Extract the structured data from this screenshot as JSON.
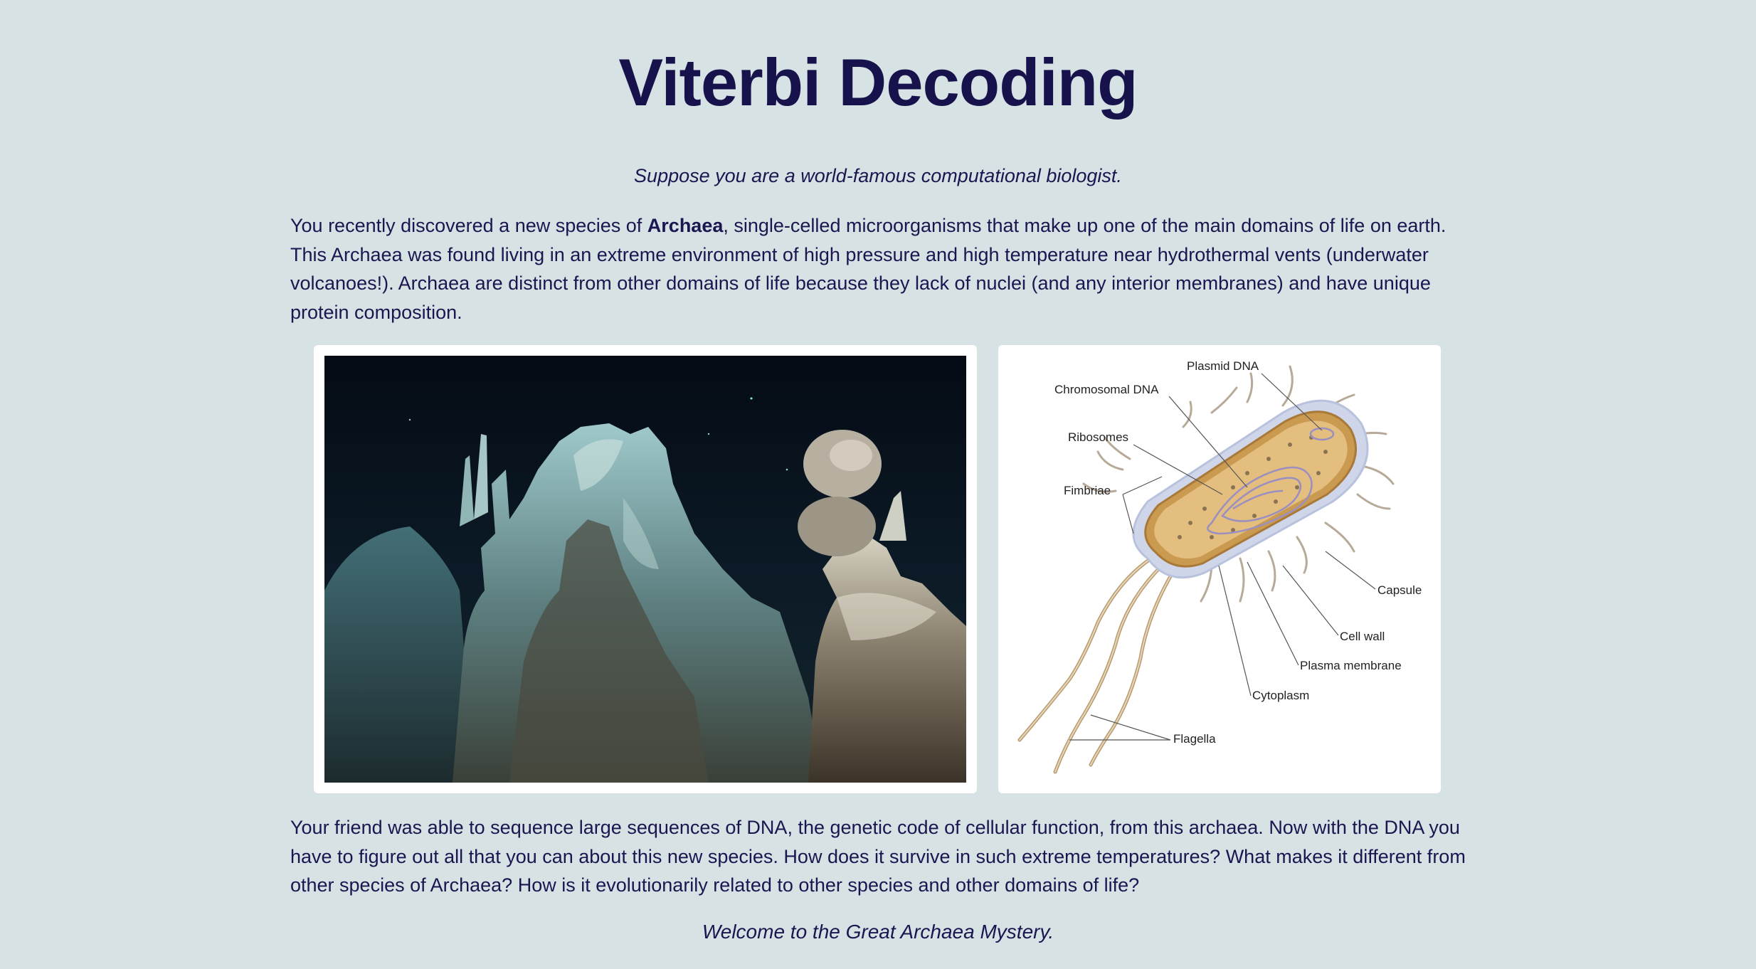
{
  "title": "Viterbi Decoding",
  "lead": "Suppose you are a world-famous computational biologist.",
  "intro": {
    "before": "You recently discovered a new species of ",
    "bold": "Archaea",
    "after": ", single-celled microorganisms that make up one of the main domains of life on earth. This Archaea was found living in an extreme environment of high pressure and high temperature near hydrothermal vents (underwater volcanoes!). Archaea are distinct from other domains of life because they lack of nuclei (and any interior membranes) and have unique protein composition."
  },
  "diagram": {
    "labels": {
      "plasmid": "Plasmid DNA",
      "chromosomal": "Chromosomal DNA",
      "ribosomes": "Ribosomes",
      "fimbriae": "Fimbriae",
      "capsule": "Capsule",
      "cell_wall": "Cell wall",
      "plasma_membrane": "Plasma membrane",
      "cytoplasm": "Cytoplasm",
      "flagella": "Flagella"
    }
  },
  "followup": "Your friend was able to sequence large sequences of DNA, the genetic code of cellular function, from this archaea. Now with the DNA you have to figure out all that you can about this new species. How does it survive in such extreme temperatures? What makes it different from other species of Archaea? How is it evolutionarily related to other species and other domains of life?",
  "closing": "Welcome to the Great Archaea Mystery.",
  "colors": {
    "background": "#d6e2e4",
    "text": "#1b1650"
  }
}
